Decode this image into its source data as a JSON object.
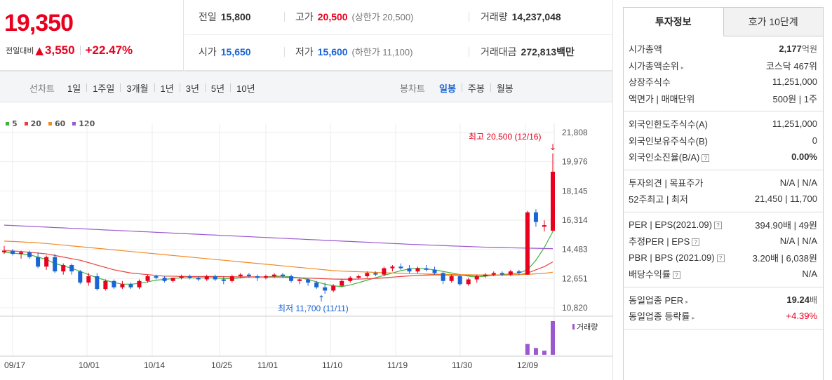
{
  "price": {
    "current": "19,350",
    "diff_label": "전일대비",
    "diff_arrow": "▲",
    "diff_amount": "3,550",
    "diff_rate": "+22.47%"
  },
  "quote": {
    "prev_label": "전일",
    "prev_value": "15,800",
    "high_label": "고가",
    "high_value": "20,500",
    "upper_limit": "(상한가 20,500)",
    "volume_label": "거래량",
    "volume_value": "14,237,048",
    "open_label": "시가",
    "open_value": "15,650",
    "low_label": "저가",
    "low_value": "15,600",
    "lower_limit": "(하한가 11,100)",
    "amount_label": "거래대금",
    "amount_value": "272,813",
    "amount_unit": "백만"
  },
  "period": {
    "label": "선차트",
    "items": [
      "1일",
      "1주일",
      "3개월",
      "1년",
      "3년",
      "5년",
      "10년"
    ],
    "candle_label": "봉차트",
    "candle_items": [
      "일봉",
      "주봉",
      "월봉"
    ],
    "candle_active": "일봉"
  },
  "legend": [
    {
      "name": "5",
      "color": "#3fb43a"
    },
    {
      "name": "20",
      "color": "#e8413c"
    },
    {
      "name": "60",
      "color": "#f08a24"
    },
    {
      "name": "120",
      "color": "#9b59d0"
    }
  ],
  "chart_data": {
    "type": "candlestick",
    "y_ticks": [
      "21,808",
      "19,976",
      "18,145",
      "16,314",
      "14,483",
      "12,651",
      "10,820"
    ],
    "ylim": [
      10820,
      21808
    ],
    "x_ticks": [
      "09/17",
      "10/01",
      "10/14",
      "10/25",
      "11/01",
      "11/10",
      "11/19",
      "11/30",
      "12/09"
    ],
    "annotation_high": "최고 20,500 (12/16)",
    "annotation_low": "최저 11,700 (11/11)",
    "volume_label": "거래량",
    "up_color": "#e8001e",
    "down_color": "#1a64d4",
    "candles": [
      [
        14300,
        14700,
        14200,
        14400
      ],
      [
        14400,
        14500,
        14100,
        14200
      ],
      [
        14200,
        14400,
        13900,
        14300
      ],
      [
        14300,
        14400,
        13900,
        14000
      ],
      [
        14000,
        14300,
        13300,
        13400
      ],
      [
        13400,
        14100,
        13200,
        14000
      ],
      [
        14000,
        14200,
        13000,
        13100
      ],
      [
        13100,
        13600,
        12900,
        13500
      ],
      [
        13500,
        13600,
        12900,
        13100
      ],
      [
        13100,
        13200,
        12300,
        12400
      ],
      [
        12400,
        13000,
        12200,
        12800
      ],
      [
        12800,
        13000,
        11900,
        12000
      ],
      [
        12000,
        12600,
        11900,
        12500
      ],
      [
        12500,
        12600,
        12000,
        12100
      ],
      [
        12100,
        12500,
        12000,
        12300
      ],
      [
        12300,
        12400,
        12000,
        12100
      ],
      [
        12100,
        12600,
        12000,
        12500
      ],
      [
        12500,
        12900,
        12400,
        12800
      ],
      [
        12800,
        12900,
        12600,
        12700
      ],
      [
        12700,
        12800,
        12400,
        12500
      ],
      [
        12500,
        12700,
        12400,
        12700
      ],
      [
        12700,
        12900,
        12600,
        12800
      ],
      [
        12800,
        12900,
        12600,
        12700
      ],
      [
        12700,
        12800,
        12500,
        12600
      ],
      [
        12600,
        12900,
        12500,
        12800
      ],
      [
        12800,
        12900,
        12500,
        12600
      ],
      [
        12600,
        12800,
        12300,
        12500
      ],
      [
        12500,
        12900,
        12400,
        12800
      ],
      [
        12800,
        13000,
        12700,
        12900
      ],
      [
        12900,
        13000,
        12700,
        12800
      ],
      [
        12800,
        12900,
        12500,
        12700
      ],
      [
        12700,
        12900,
        12600,
        12800
      ],
      [
        12800,
        13000,
        12700,
        12900
      ],
      [
        12900,
        13000,
        12700,
        12800
      ],
      [
        12800,
        12900,
        12400,
        12500
      ],
      [
        12500,
        12700,
        12300,
        12600
      ],
      [
        12600,
        12700,
        12200,
        12400
      ],
      [
        12400,
        12500,
        12000,
        12100
      ],
      [
        12100,
        12400,
        11700,
        11900
      ],
      [
        11900,
        12300,
        11800,
        12200
      ],
      [
        12200,
        12600,
        12100,
        12500
      ],
      [
        12500,
        12800,
        12400,
        12700
      ],
      [
        12700,
        12900,
        12600,
        12800
      ],
      [
        12800,
        13100,
        12700,
        13000
      ],
      [
        13000,
        13100,
        12800,
        12900
      ],
      [
        12900,
        13400,
        12800,
        13300
      ],
      [
        13300,
        13500,
        13100,
        13400
      ],
      [
        13400,
        13600,
        13200,
        13300
      ],
      [
        13300,
        13500,
        13000,
        13100
      ],
      [
        13100,
        13400,
        13000,
        13300
      ],
      [
        13300,
        13500,
        13100,
        13200
      ],
      [
        13200,
        13400,
        12900,
        13000
      ],
      [
        13000,
        13100,
        12300,
        12500
      ],
      [
        12500,
        12900,
        12400,
        12800
      ],
      [
        12800,
        12900,
        12200,
        12300
      ],
      [
        12300,
        12700,
        12200,
        12600
      ],
      [
        12600,
        12900,
        12400,
        12800
      ],
      [
        12800,
        13000,
        12700,
        12900
      ],
      [
        12900,
        13100,
        12800,
        13000
      ],
      [
        13000,
        13100,
        12800,
        12900
      ],
      [
        12900,
        13200,
        12800,
        13100
      ],
      [
        13100,
        13200,
        12900,
        13000
      ],
      [
        12900,
        16900,
        12900,
        16800
      ],
      [
        16800,
        17000,
        15900,
        16200
      ],
      [
        15900,
        16300,
        15600,
        16000
      ],
      [
        15650,
        20500,
        15600,
        19350
      ]
    ],
    "ma": {
      "5": [
        14300,
        14250,
        14200,
        14150,
        14000,
        13850,
        13600,
        13450,
        13300,
        13100,
        12900,
        12700,
        12550,
        12400,
        12300,
        12300,
        12350,
        12450,
        12550,
        12600,
        12650,
        12700,
        12700,
        12700,
        12700,
        12700,
        12650,
        12650,
        12700,
        12750,
        12750,
        12750,
        12800,
        12800,
        12750,
        12700,
        12600,
        12450,
        12300,
        12200,
        12150,
        12250,
        12400,
        12550,
        12700,
        12850,
        13000,
        13150,
        13250,
        13300,
        13250,
        13200,
        13100,
        13000,
        12900,
        12800,
        12750,
        12800,
        12850,
        12900,
        12950,
        13000,
        13200,
        13800,
        14600,
        15600
      ],
      "20": [
        14400,
        14380,
        14350,
        14300,
        14250,
        14200,
        14100,
        14000,
        13900,
        13800,
        13650,
        13500,
        13350,
        13200,
        13100,
        13000,
        12950,
        12900,
        12850,
        12800,
        12800,
        12780,
        12780,
        12780,
        12780,
        12780,
        12770,
        12760,
        12760,
        12760,
        12760,
        12750,
        12750,
        12740,
        12720,
        12700,
        12680,
        12660,
        12640,
        12620,
        12610,
        12610,
        12620,
        12640,
        12660,
        12700,
        12740,
        12780,
        12820,
        12850,
        12870,
        12880,
        12880,
        12870,
        12860,
        12850,
        12850,
        12850,
        12860,
        12870,
        12880,
        12890,
        13000,
        13200,
        13400,
        13700
      ],
      "60": [
        15000,
        14980,
        14950,
        14920,
        14890,
        14850,
        14800,
        14750,
        14700,
        14650,
        14600,
        14550,
        14500,
        14450,
        14400,
        14350,
        14300,
        14250,
        14200,
        14150,
        14100,
        14050,
        14000,
        13950,
        13900,
        13850,
        13800,
        13750,
        13700,
        13650,
        13600,
        13550,
        13500,
        13450,
        13400,
        13350,
        13300,
        13250,
        13200,
        13150,
        13120,
        13100,
        13080,
        13060,
        13040,
        13020,
        13000,
        12980,
        12960,
        12950,
        12940,
        12930,
        12920,
        12910,
        12900,
        12890,
        12880,
        12880,
        12880,
        12880,
        12890,
        12900,
        12920,
        12950,
        12980,
        13050
      ],
      "120": [
        16000,
        15980,
        15950,
        15930,
        15900,
        15880,
        15850,
        15830,
        15800,
        15780,
        15750,
        15730,
        15700,
        15680,
        15650,
        15630,
        15600,
        15580,
        15550,
        15530,
        15500,
        15480,
        15450,
        15430,
        15400,
        15380,
        15350,
        15330,
        15300,
        15280,
        15250,
        15230,
        15200,
        15180,
        15150,
        15130,
        15100,
        15080,
        15050,
        15030,
        15000,
        14980,
        14950,
        14930,
        14900,
        14880,
        14850,
        14830,
        14800,
        14780,
        14760,
        14740,
        14720,
        14700,
        14680,
        14660,
        14640,
        14620,
        14600,
        14590,
        14580,
        14570,
        14560,
        14550,
        14540,
        14530
      ]
    },
    "volume": [
      0,
      0,
      0,
      0,
      0,
      0,
      0,
      0,
      0,
      0,
      0,
      0,
      0,
      0,
      0,
      0,
      0,
      0,
      0,
      0,
      0,
      0,
      0,
      0,
      0,
      0,
      0,
      0,
      0,
      0,
      0,
      0,
      0,
      0,
      0,
      0,
      0,
      0,
      0,
      0,
      0,
      0,
      0,
      0,
      0,
      0,
      0,
      0,
      0,
      0,
      0,
      0,
      0,
      0,
      0,
      0,
      0,
      0,
      0,
      0,
      0,
      0,
      8,
      5,
      3,
      25
    ]
  },
  "side": {
    "tabs": [
      "투자정보",
      "호가 10단계"
    ],
    "groups": [
      [
        {
          "label": "시가총액",
          "value": "2,177",
          "unit": "억원",
          "bold": true
        },
        {
          "label": "시가총액순위",
          "value": "코스닥 467위",
          "tri": true
        },
        {
          "label": "상장주식수",
          "value": "11,251,000"
        },
        {
          "label": "액면가 | 매매단위",
          "value": "500원 | 1주"
        }
      ],
      [
        {
          "label": "외국인한도주식수(A)",
          "value": "11,251,000"
        },
        {
          "label": "외국인보유주식수(B)",
          "value": "0"
        },
        {
          "label": "외국인소진율(B/A)",
          "value": "0.00%",
          "bold": true,
          "q": true
        }
      ],
      [
        {
          "label": "투자의견 | 목표주가",
          "value": "N/A | N/A"
        },
        {
          "label": "52주최고 | 최저",
          "value": "21,450 | 11,700"
        }
      ],
      [
        {
          "label": "PER | EPS(2021.09)",
          "value": "394.90배 | 49원",
          "q": true
        },
        {
          "label": "추정PER | EPS",
          "value": "N/A | N/A",
          "q": true
        },
        {
          "label": "PBR | BPS (2021.09)",
          "value": "3.20배 | 6,038원",
          "q": true
        },
        {
          "label": "배당수익률",
          "value": "N/A",
          "q": true
        }
      ],
      [
        {
          "label": "동일업종 PER",
          "value": "19.24",
          "unit": "배",
          "bold": true,
          "tri": true
        },
        {
          "label": "동일업종 등락률",
          "value": "+4.39%",
          "red": true,
          "tri": true
        }
      ]
    ]
  }
}
